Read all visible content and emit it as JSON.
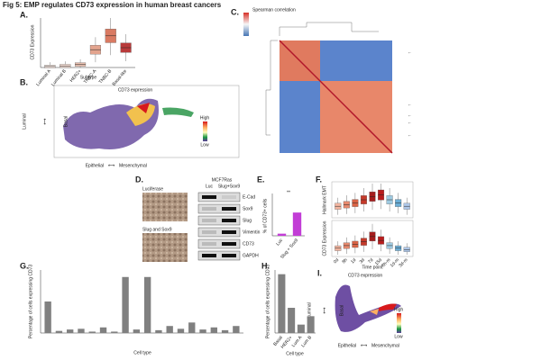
{
  "title": "Fig 5: EMP regulates CD73 expression in human breast cancers",
  "panels": {
    "A": {
      "letter": "A.",
      "ylabel": "CD73 Expression",
      "xlabel": "Subtype",
      "categories": [
        "Luminal A",
        "Luminal B",
        "HER2+",
        "TNBC-A",
        "TNBC-B",
        "Basal-like"
      ],
      "values": [
        0.05,
        0.08,
        0.15,
        0.9,
        1.6,
        1.0
      ],
      "ylim": [
        0,
        2.5
      ]
    },
    "B": {
      "letter": "B.",
      "title": "CD73 expression",
      "y_low": "Luminal",
      "y_high": "Basal",
      "x_low": "Epithelial",
      "x_high": "Mesenchymal",
      "high": "High",
      "low": "Low"
    },
    "C": {
      "letter": "C.",
      "legend": "Spearman correlation"
    },
    "D": {
      "letter": "D.",
      "img1": "Luciferase",
      "img2": "Slug and Sox9",
      "cell_line": "MCF7Ras",
      "lanes": [
        "Luc",
        "Slug+Sox9"
      ],
      "bands": [
        "E-Cad",
        "Sox9",
        "Slug",
        "Vimentin",
        "CD73",
        "GAPDH"
      ]
    },
    "E": {
      "letter": "E.",
      "ylabel": "% of CD73+ cells",
      "sig": "**",
      "categories": [
        "Luc",
        "Slug + Sox9"
      ],
      "values": [
        2,
        22
      ],
      "ylim": [
        0,
        40
      ]
    },
    "F": {
      "letter": "F.",
      "ylabel1": "Hallmark EMT",
      "ylabel2": "CD73 Expression",
      "xlabel": "Time point",
      "categories": [
        "0d",
        "8h",
        "1d",
        "3d",
        "7d",
        "15d",
        "8h-m",
        "1d-m",
        "3d-m"
      ],
      "series": [
        {
          "values": [
            0.012,
            0.014,
            0.016,
            0.02,
            0.024,
            0.026,
            0.02,
            0.016,
            0.012
          ],
          "ylim": [
            0,
            0.04
          ]
        },
        {
          "values": [
            0.5,
            0.7,
            0.8,
            1.0,
            1.4,
            1.1,
            0.7,
            0.5,
            0.4
          ],
          "ylim": [
            0,
            2.5
          ]
        }
      ]
    },
    "G": {
      "letter": "G.",
      "ylabel": "Percentage of cells expressing CD73",
      "xlabel": "Cell type",
      "values": [
        0.45,
        0.03,
        0.05,
        0.06,
        0.02,
        0.08,
        0.02,
        0.8,
        0.05,
        0.8,
        0.04,
        0.1,
        0.06,
        0.15,
        0.05,
        0.08,
        0.04,
        0.1
      ],
      "ylim": [
        0,
        0.9
      ]
    },
    "H": {
      "letter": "H.",
      "ylabel": "Percentage of cells expressing CD73",
      "xlabel": "Cell type",
      "categories": [
        "Basal",
        "HER2+",
        "Lum A",
        "Lum B"
      ],
      "values": [
        0.7,
        0.3,
        0.1,
        0.2
      ],
      "ylim": [
        0,
        0.75
      ]
    },
    "I": {
      "letter": "I.",
      "title": "CD73 expression",
      "y_low": "Luminal",
      "y_high": "Basal",
      "x_low": "Epithelial",
      "x_high": "Mesenchymal",
      "high": "High",
      "low": "Low"
    }
  }
}
